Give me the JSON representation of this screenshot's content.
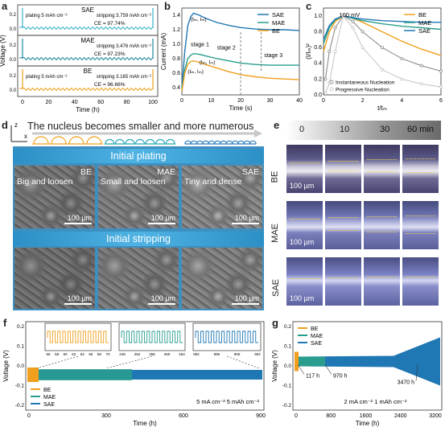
{
  "panels": {
    "a": {
      "label": "a",
      "ylabel": "Voltage (V)",
      "xlabel": "Time (h)",
      "xticks": [
        "0",
        "20",
        "40",
        "60",
        "80",
        "100"
      ],
      "rows": [
        {
          "name": "SAE",
          "left": "plating 5 mAh cm⁻²",
          "right": "stripping 3.759 mAh cm⁻²",
          "ce": "CE = 97.74%",
          "color": "#3bb2c8",
          "yticks": [
            "0.2",
            "0.0"
          ]
        },
        {
          "name": "MAE",
          "left": "",
          "right": "stripping 3.476 mAh cm⁻²",
          "ce": "CE = 97.23%",
          "color": "#1f8aa0",
          "yticks": [
            "0.2",
            "0.0"
          ]
        },
        {
          "name": "BE",
          "left": "plating 5 mAh cm⁻²",
          "right": "stripping 3.165 mAh cm⁻²",
          "ce": "CE = 96.66%",
          "color": "#f0a01e",
          "yticks": [
            "0.2",
            "0.0"
          ]
        }
      ]
    },
    "b": {
      "label": "b",
      "ylabel": "Current (mA)",
      "xlabel": "Time (s)",
      "legend": [
        "SAE",
        "MAE",
        "BE"
      ],
      "annotations": [
        "stage 1",
        "stage 2",
        "stage 3",
        "(tₘ, Iₘ)",
        "(tₘ, Iₘ)",
        "(tₘ, Iₘ)"
      ],
      "xticks": [
        "0",
        "10",
        "20",
        "30",
        "40"
      ],
      "yticks": [
        "0.4",
        "0.6",
        "0.8",
        "1.0",
        "1.2",
        "1.4"
      ]
    },
    "c": {
      "label": "c",
      "ylabel": "(I/Iₘ)²",
      "xlabel": "t/tₘ",
      "top_label": "100 mV",
      "legend": [
        "BE",
        "MAE",
        "SAE"
      ],
      "legend2": [
        "Instantaneous Nucleation",
        "Progressive Nucleation"
      ],
      "xticks": [
        "0",
        "2",
        "4",
        "6"
      ],
      "yticks": [
        "0.0",
        "0.2",
        "0.4",
        "0.6",
        "0.8",
        "1.0"
      ]
    },
    "d": {
      "label": "d",
      "title": "The nucleus becomes smaller and more numerous",
      "axis_z": "z",
      "axis_x": "x",
      "banner1": "Initial plating",
      "banner2": "Initial stripping",
      "top_images": [
        {
          "tag": "BE",
          "desc": "Big and loosen",
          "scale": "100 µm"
        },
        {
          "tag": "MAE",
          "desc": "Small and loosen",
          "scale": "100 µm"
        },
        {
          "tag": "SAE",
          "desc": "Tiny and dense",
          "scale": "100 µm"
        }
      ],
      "bottom_images": [
        {
          "scale": "100 µm"
        },
        {
          "scale": "100 µm"
        },
        {
          "scale": "100 µm"
        }
      ]
    },
    "e": {
      "label": "e",
      "times": [
        "0",
        "10",
        "30",
        "60 min"
      ],
      "rows": [
        {
          "name": "BE",
          "scale": "100 µm"
        },
        {
          "name": "MAE",
          "scale": "100 µm"
        },
        {
          "name": "SAE",
          "scale": "100 µm"
        }
      ]
    },
    "f": {
      "label": "f",
      "ylabel": "Voltage (V)",
      "xlabel": "Time (h)",
      "legend": [
        "BE",
        "MAE",
        "SAE"
      ],
      "condition": "5 mA cm⁻² 5 mAh cm⁻²",
      "xticks": [
        "0",
        "300",
        "600",
        "900"
      ],
      "yticks": [
        "-0.2",
        "-0.1",
        "0.0",
        "0.1",
        "0.2"
      ],
      "insets": [
        {
          "ticks": [
            "56",
            "58",
            "60",
            "62",
            "64",
            "66",
            "68",
            "70"
          ]
        },
        {
          "ticks": [
            "248",
            "252",
            "256",
            "260",
            "264"
          ]
        },
        {
          "ticks": [
            "892",
            "896",
            "900",
            "904"
          ]
        }
      ]
    },
    "g": {
      "label": "g",
      "ylabel": "Voltage (V)",
      "xlabel": "Time (h)",
      "legend": [
        "BE",
        "MAE",
        "SAE"
      ],
      "condition": "2 mA cm⁻² 1 mAh cm⁻²",
      "markers": [
        "117 h",
        "970 h",
        "3470 h"
      ],
      "xticks": [
        "0",
        "800",
        "1600",
        "2400",
        "3200"
      ],
      "yticks": [
        "-0.2",
        "-0.1",
        "0.0",
        "0.1",
        "0.2"
      ]
    }
  },
  "colors": {
    "be": "#f0a01e",
    "mae": "#2a9d8f",
    "sae": "#1f77b4",
    "instant": "#8c8c8c",
    "progressive": "#c8c8c8"
  },
  "chart_data": [
    {
      "type": "line",
      "panel": "b",
      "xlabel": "Time (s)",
      "ylabel": "Current (mA)",
      "xlim": [
        0,
        40
      ],
      "ylim": [
        0.3,
        1.5
      ],
      "series": [
        {
          "name": "SAE",
          "x": [
            0,
            1,
            2,
            3,
            4,
            6,
            8,
            12,
            16,
            20,
            25,
            30,
            35,
            40
          ],
          "values": [
            0.4,
            0.9,
            1.25,
            1.38,
            1.43,
            1.4,
            1.36,
            1.3,
            1.26,
            1.23,
            1.21,
            1.2,
            1.2,
            1.19
          ]
        },
        {
          "name": "MAE",
          "x": [
            0,
            1,
            2,
            3,
            4,
            6,
            8,
            12,
            16,
            20,
            25,
            30,
            35,
            40
          ],
          "values": [
            0.35,
            0.65,
            0.8,
            0.85,
            0.87,
            0.86,
            0.84,
            0.8,
            0.77,
            0.74,
            0.72,
            0.71,
            0.71,
            0.71
          ]
        },
        {
          "name": "BE",
          "x": [
            0,
            1,
            2,
            3,
            4,
            6,
            8,
            12,
            16,
            20,
            25,
            30,
            35,
            40
          ],
          "values": [
            0.35,
            0.6,
            0.72,
            0.76,
            0.77,
            0.75,
            0.72,
            0.67,
            0.62,
            0.58,
            0.55,
            0.53,
            0.52,
            0.51
          ]
        }
      ]
    },
    {
      "type": "line",
      "panel": "c",
      "xlabel": "t/tₘ",
      "ylabel": "(I/Iₘ)²",
      "xlim": [
        0,
        6
      ],
      "ylim": [
        0,
        1.1
      ],
      "series": [
        {
          "name": "BE",
          "x": [
            0,
            0.3,
            0.6,
            1,
            1.5,
            2,
            3,
            4,
            5,
            6
          ],
          "values": [
            0.55,
            0.8,
            0.93,
            1.0,
            0.97,
            0.92,
            0.8,
            0.68,
            0.58,
            0.5
          ]
        },
        {
          "name": "MAE",
          "x": [
            0,
            0.3,
            0.6,
            1,
            1.5,
            2,
            3,
            4,
            5,
            6
          ],
          "values": [
            0.65,
            0.85,
            0.95,
            1.0,
            0.97,
            0.94,
            0.9,
            0.87,
            0.85,
            0.83
          ]
        },
        {
          "name": "SAE",
          "x": [
            0,
            0.3,
            0.6,
            1,
            1.5,
            2,
            3,
            4,
            5,
            6
          ],
          "values": [
            0.7,
            0.88,
            0.96,
            1.0,
            0.98,
            0.96,
            0.94,
            0.93,
            0.92,
            0.92
          ]
        },
        {
          "name": "Instantaneous Nucleation",
          "x": [
            0.1,
            0.3,
            0.6,
            1,
            1.5,
            2,
            3,
            4,
            5,
            6
          ],
          "values": [
            0.2,
            0.55,
            0.85,
            1.0,
            0.93,
            0.8,
            0.6,
            0.46,
            0.37,
            0.3
          ]
        },
        {
          "name": "Progressive Nucleation",
          "x": [
            0.1,
            0.3,
            0.6,
            1,
            1.5,
            2,
            3,
            4,
            5,
            6
          ],
          "values": [
            0.02,
            0.15,
            0.55,
            1.0,
            0.85,
            0.6,
            0.32,
            0.2,
            0.14,
            0.1
          ]
        }
      ]
    }
  ]
}
